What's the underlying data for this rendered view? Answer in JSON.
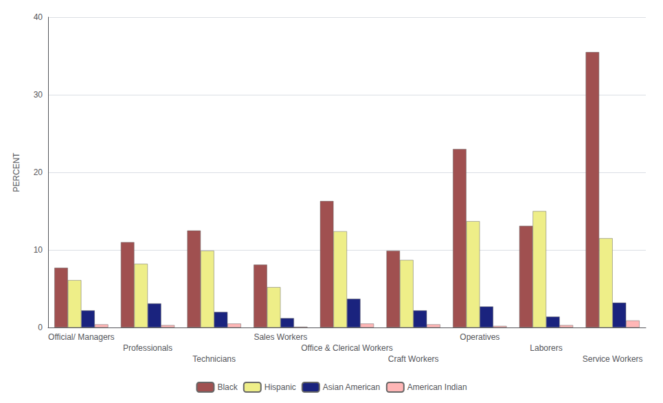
{
  "chart_data": {
    "type": "bar",
    "categories": [
      "Official/ Managers",
      "Professionals",
      "Technicians",
      "Sales Workers",
      "Office & Clerical Workers",
      "Craft Workers",
      "Operatives",
      "Laborers",
      "Service Workers"
    ],
    "series": [
      {
        "name": "Black",
        "color": "#A05050",
        "values": [
          7.7,
          11.0,
          12.5,
          8.1,
          16.3,
          9.9,
          23.0,
          13.1,
          35.5
        ]
      },
      {
        "name": "Hispanic",
        "color": "#EEEE88",
        "values": [
          6.1,
          8.2,
          9.9,
          5.2,
          12.4,
          8.7,
          13.7,
          15.0,
          11.5
        ]
      },
      {
        "name": "Asian American",
        "color": "#1A237E",
        "values": [
          2.2,
          3.1,
          2.0,
          1.2,
          3.7,
          2.2,
          2.7,
          1.4,
          3.2
        ]
      },
      {
        "name": "American Indian",
        "color": "#FFB6B6",
        "values": [
          0.4,
          0.3,
          0.5,
          0.1,
          0.5,
          0.4,
          0.2,
          0.3,
          0.9
        ]
      }
    ],
    "ylabel": "PERCENT",
    "ylim": [
      0,
      40
    ],
    "yticks": [
      0,
      10,
      20,
      30,
      40
    ],
    "grid": true,
    "legend": "bottom"
  }
}
